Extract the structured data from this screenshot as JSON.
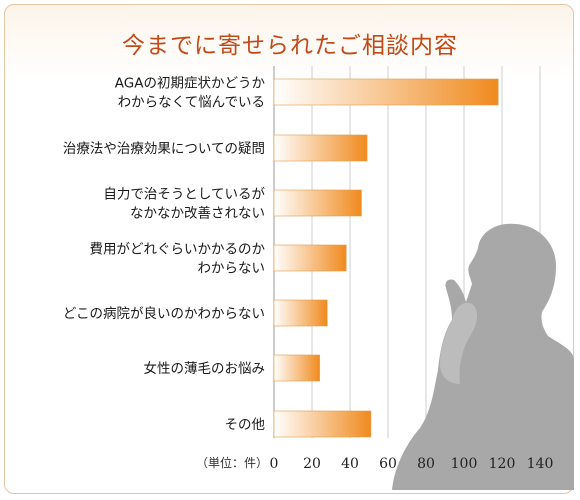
{
  "title": "今までに寄せられたご相談内容",
  "unit_label": "（単位：件）",
  "colors": {
    "title": "#c24a18",
    "bar_start": "#ffffff",
    "bar_end": "#f08a1e",
    "bar_stroke": "#e59a4a",
    "grid": "#cfcfcf",
    "silhouette": "#a7a7a7"
  },
  "chart_data": {
    "type": "bar",
    "orientation": "horizontal",
    "categories": [
      [
        "AGAの初期症状かどうか",
        "わからなくて悩んでいる"
      ],
      [
        "治療法や治療効果についての疑問"
      ],
      [
        "自力で治そうとしているが",
        "なかなか改善されない"
      ],
      [
        "費用がどれぐらいかかるのか",
        "わからない"
      ],
      [
        "どこの病院が良いのかわからない"
      ],
      [
        "女性の薄毛のお悩み"
      ],
      [
        "その他"
      ]
    ],
    "values": [
      118,
      49,
      46,
      38,
      28,
      24,
      51
    ],
    "xlim": [
      0,
      140
    ],
    "xticks": [
      "0",
      "20",
      "40",
      "60",
      "80",
      "100",
      "120",
      "140"
    ],
    "grid": true
  }
}
